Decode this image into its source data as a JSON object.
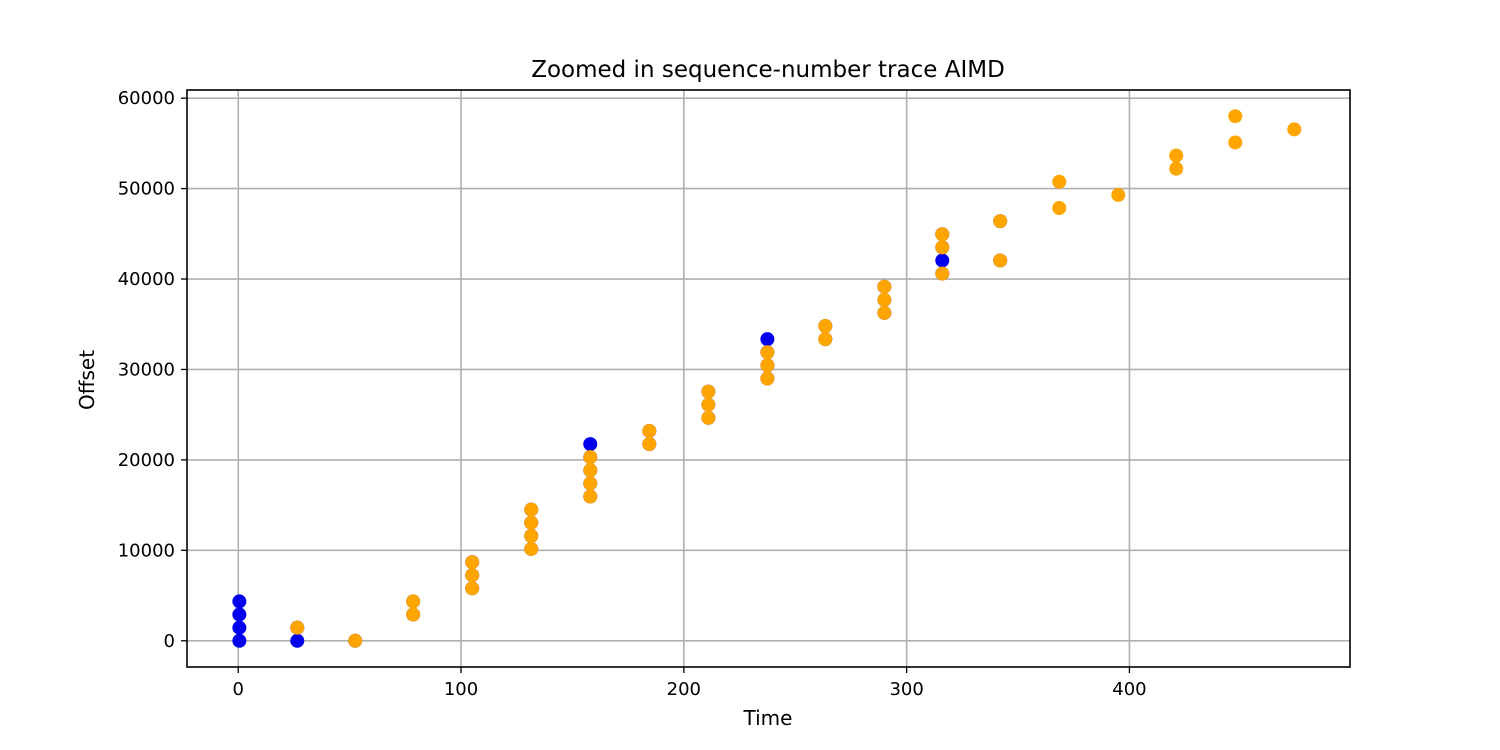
{
  "chart_data": {
    "type": "scatter",
    "title": "Zoomed in sequence-number trace AIMD",
    "xlabel": "Time",
    "ylabel": "Offset",
    "xlim": [
      -23,
      499
    ],
    "ylim": [
      -2900,
      60900
    ],
    "x_ticks": [
      0,
      100,
      200,
      300,
      400
    ],
    "y_ticks": [
      0,
      10000,
      20000,
      30000,
      40000,
      50000,
      60000
    ],
    "grid": true,
    "colors": {
      "blue_series": "#0000ee",
      "orange_series": "#ffa500"
    },
    "series": [
      {
        "color": "#0000ee",
        "points": [
          [
            0.5,
            0
          ],
          [
            0.5,
            1450
          ],
          [
            0.5,
            2900
          ],
          [
            0.5,
            4350
          ],
          [
            26.5,
            0
          ],
          [
            26.5,
            1450
          ],
          [
            52.5,
            0
          ],
          [
            78.5,
            2900
          ],
          [
            78.5,
            4350
          ],
          [
            105,
            5800
          ],
          [
            105,
            7250
          ],
          [
            105,
            8700
          ],
          [
            131.5,
            10150
          ],
          [
            131.5,
            11600
          ],
          [
            131.5,
            13050
          ],
          [
            131.5,
            14500
          ],
          [
            158,
            15950
          ],
          [
            158,
            17400
          ],
          [
            158,
            18850
          ],
          [
            158,
            20300
          ],
          [
            158,
            21750
          ],
          [
            184.5,
            21750
          ],
          [
            184.5,
            23200
          ],
          [
            211,
            24650
          ],
          [
            211,
            26100
          ],
          [
            211,
            27550
          ],
          [
            237.5,
            29000
          ],
          [
            237.5,
            30450
          ],
          [
            237.5,
            31900
          ],
          [
            237.5,
            33350
          ],
          [
            263.5,
            33350
          ],
          [
            263.5,
            34800
          ],
          [
            290,
            36250
          ],
          [
            290,
            37700
          ],
          [
            290,
            39150
          ],
          [
            316,
            40600
          ],
          [
            316,
            42050
          ],
          [
            316,
            43500
          ],
          [
            316,
            44950
          ],
          [
            342,
            42050
          ],
          [
            342,
            46400
          ]
        ]
      },
      {
        "color": "#ffa500",
        "points": [
          [
            26.5,
            1450
          ],
          [
            52.5,
            0
          ],
          [
            78.5,
            2900
          ],
          [
            78.5,
            4350
          ],
          [
            105,
            5800
          ],
          [
            105,
            7250
          ],
          [
            105,
            8700
          ],
          [
            131.5,
            10150
          ],
          [
            131.5,
            11600
          ],
          [
            131.5,
            13050
          ],
          [
            131.5,
            14500
          ],
          [
            158,
            15950
          ],
          [
            158,
            17400
          ],
          [
            158,
            18850
          ],
          [
            158,
            20300
          ],
          [
            184.5,
            21750
          ],
          [
            184.5,
            23200
          ],
          [
            211,
            24650
          ],
          [
            211,
            26100
          ],
          [
            211,
            27550
          ],
          [
            237.5,
            29000
          ],
          [
            237.5,
            30450
          ],
          [
            237.5,
            31900
          ],
          [
            263.5,
            33350
          ],
          [
            263.5,
            34800
          ],
          [
            290,
            36250
          ],
          [
            290,
            37700
          ],
          [
            290,
            39150
          ],
          [
            316,
            40600
          ],
          [
            316,
            43500
          ],
          [
            316,
            44950
          ],
          [
            342,
            42050
          ],
          [
            342,
            46400
          ],
          [
            368.5,
            47850
          ],
          [
            368.5,
            50750
          ],
          [
            395,
            49300
          ],
          [
            421,
            52200
          ],
          [
            421,
            53650
          ],
          [
            447.5,
            55100
          ],
          [
            447.5,
            58000
          ],
          [
            474,
            56550
          ]
        ]
      }
    ]
  }
}
